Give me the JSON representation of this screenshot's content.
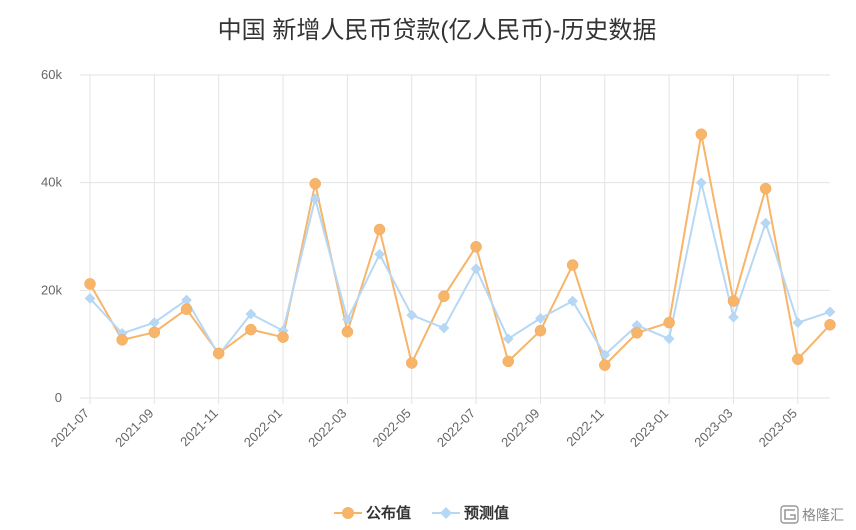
{
  "chart_data": {
    "type": "line",
    "title": "中国 新增人民币贷款(亿人民币)-历史数据",
    "x": [
      "2021-07",
      "2021-08",
      "2021-09",
      "2021-10",
      "2021-11",
      "2021-12",
      "2022-01",
      "2022-02",
      "2022-03",
      "2022-04",
      "2022-05",
      "2022-06",
      "2022-07",
      "2022-08",
      "2022-09",
      "2022-10",
      "2022-11",
      "2022-12",
      "2023-01",
      "2023-02",
      "2023-03",
      "2023-04",
      "2023-05",
      "2023-06"
    ],
    "x_tick_labels": [
      "2021-07",
      "2021-09",
      "2021-11",
      "2022-01",
      "2022-03",
      "2022-05",
      "2022-07",
      "2022-09",
      "2022-11",
      "2023-01",
      "2023-03",
      "2023-05"
    ],
    "y_tick_labels": [
      "0",
      "20k",
      "40k",
      "60k"
    ],
    "ylim": [
      0,
      60000
    ],
    "grid": true,
    "legend_position": "bottom-center",
    "series": [
      {
        "name": "公布值",
        "color": "#f7b56a",
        "marker": "circle",
        "values": [
          21200,
          10800,
          12200,
          16500,
          8300,
          12700,
          11300,
          39800,
          12300,
          31300,
          6500,
          18900,
          28100,
          6800,
          12500,
          24700,
          6100,
          12100,
          14000,
          49000,
          18000,
          38900,
          7200,
          13600
        ]
      },
      {
        "name": "预测值",
        "color": "#b7d8f5",
        "marker": "diamond",
        "values": [
          18500,
          12000,
          14000,
          18200,
          8000,
          15600,
          12500,
          37000,
          14600,
          26700,
          15400,
          13000,
          24000,
          11000,
          14800,
          18000,
          8000,
          13500,
          11000,
          40000,
          15000,
          32500,
          14000,
          16000
        ]
      }
    ]
  },
  "watermark": {
    "text": "格隆汇",
    "icon": "glh-logo-icon"
  }
}
